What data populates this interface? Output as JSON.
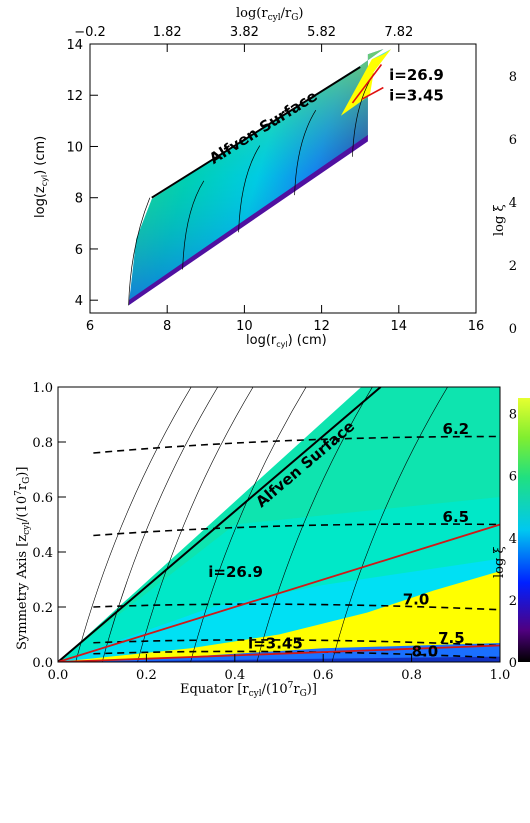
{
  "chart_data": [
    {
      "type": "heatmap",
      "xlabel": "log(r",
      "xlabel_sub": "cyl",
      "xlabel_tail": ") (cm)",
      "ylabel": "log(z",
      "ylabel_sub": "cyl",
      "ylabel_tail": ") (cm)",
      "top_xlabel": "log(r",
      "top_xlabel_sub": "cyl",
      "top_xlabel_mid": "/r",
      "top_xlabel_sub2": "G",
      "top_xlabel_tail": ")",
      "xlim": [
        6,
        16
      ],
      "ylim": [
        3.5,
        14
      ],
      "xticks": [
        "6",
        "8",
        "10",
        "12",
        "14",
        "16"
      ],
      "yticks": [
        "4",
        "6",
        "8",
        "10",
        "12",
        "14"
      ],
      "top_ticks": [
        "−0.2",
        "1.82",
        "3.82",
        "5.82",
        "7.82"
      ],
      "top_tick_positions": [
        6,
        8,
        10,
        12,
        14
      ],
      "annotations": [
        {
          "text": "Alfven Surface",
          "x": 9.2,
          "y": 9.3
        },
        {
          "text": "i=26.9",
          "x": 13.75,
          "y": 12.6
        },
        {
          "text": "i=3.45",
          "x": 13.75,
          "y": 11.8
        }
      ],
      "alfven_line": [
        [
          7.6,
          8.0
        ],
        [
          13.0,
          13.1
        ]
      ],
      "red_lines": [
        {
          "name": "i=26.9",
          "points": [
            [
              12.8,
              11.7
            ],
            [
              13.55,
              13.2
            ]
          ]
        },
        {
          "name": "i=3.45",
          "points": [
            [
              13.05,
              11.85
            ],
            [
              13.6,
              12.3
            ]
          ]
        }
      ],
      "colors": {
        "green": "#5fe25f",
        "cyan": "#00d0e8",
        "blue": "#1050ff",
        "purple": "#4010a0",
        "yellow": "#ffff00",
        "red": "#e01010"
      }
    },
    {
      "type": "heatmap",
      "xlabel": "Equator [r",
      "xlabel_sub": "cyl",
      "xlabel_tail": "/(10",
      "xlabel_sup": "7",
      "xlabel_end": "r",
      "xlabel_sub2": "G",
      "xlabel_close": ")]",
      "ylabel": "Symmetry Axis [z",
      "ylabel_sub": "cyl",
      "ylabel_tail": "/(10",
      "ylabel_sup": "7",
      "ylabel_end": "r",
      "ylabel_sub2": "G",
      "ylabel_close": ")]",
      "xlim": [
        0,
        1
      ],
      "ylim": [
        0,
        1
      ],
      "xticks": [
        "0.0",
        "0.2",
        "0.4",
        "0.6",
        "0.8",
        "1.0"
      ],
      "yticks": [
        "0.0",
        "0.2",
        "0.4",
        "0.6",
        "0.8",
        "1.0"
      ],
      "contours": [
        {
          "label": "6.2",
          "y_left": 0.76,
          "y_right": 0.82,
          "label_x": 0.87,
          "label_y": 0.83
        },
        {
          "label": "6.5",
          "y_left": 0.46,
          "y_right": 0.5,
          "label_x": 0.87,
          "label_y": 0.51
        },
        {
          "label": "7.0",
          "y_left": 0.2,
          "y_right": 0.19,
          "label_x": 0.78,
          "label_y": 0.21
        },
        {
          "label": "7.5",
          "y_left": 0.07,
          "y_right": 0.06,
          "label_x": 0.86,
          "label_y": 0.07
        },
        {
          "label": "8.0",
          "y_left": 0.03,
          "y_right": 0.015,
          "label_x": 0.8,
          "label_y": 0.02
        }
      ],
      "annotations": [
        {
          "text": "Alfven Surface",
          "x": 0.46,
          "y": 0.56
        },
        {
          "text": "i=26.9",
          "x": 0.34,
          "y": 0.31
        },
        {
          "text": "i=3.45",
          "x": 0.43,
          "y": 0.05
        }
      ],
      "alfven_line": [
        [
          0.0,
          0.0
        ],
        [
          0.73,
          1.0
        ]
      ],
      "red_lines": [
        {
          "name": "i=26.9",
          "slope": 0.5
        },
        {
          "name": "i=3.45",
          "slope": 0.06
        }
      ]
    }
  ],
  "colorbars": [
    {
      "label": "log ξ",
      "ticks": [
        "0",
        "2",
        "4",
        "6",
        "8"
      ],
      "range": [
        0,
        8.5
      ]
    },
    {
      "label": "log ξ",
      "ticks": [
        "0",
        "2",
        "4",
        "6",
        "8"
      ],
      "range": [
        0,
        8.5
      ]
    }
  ]
}
